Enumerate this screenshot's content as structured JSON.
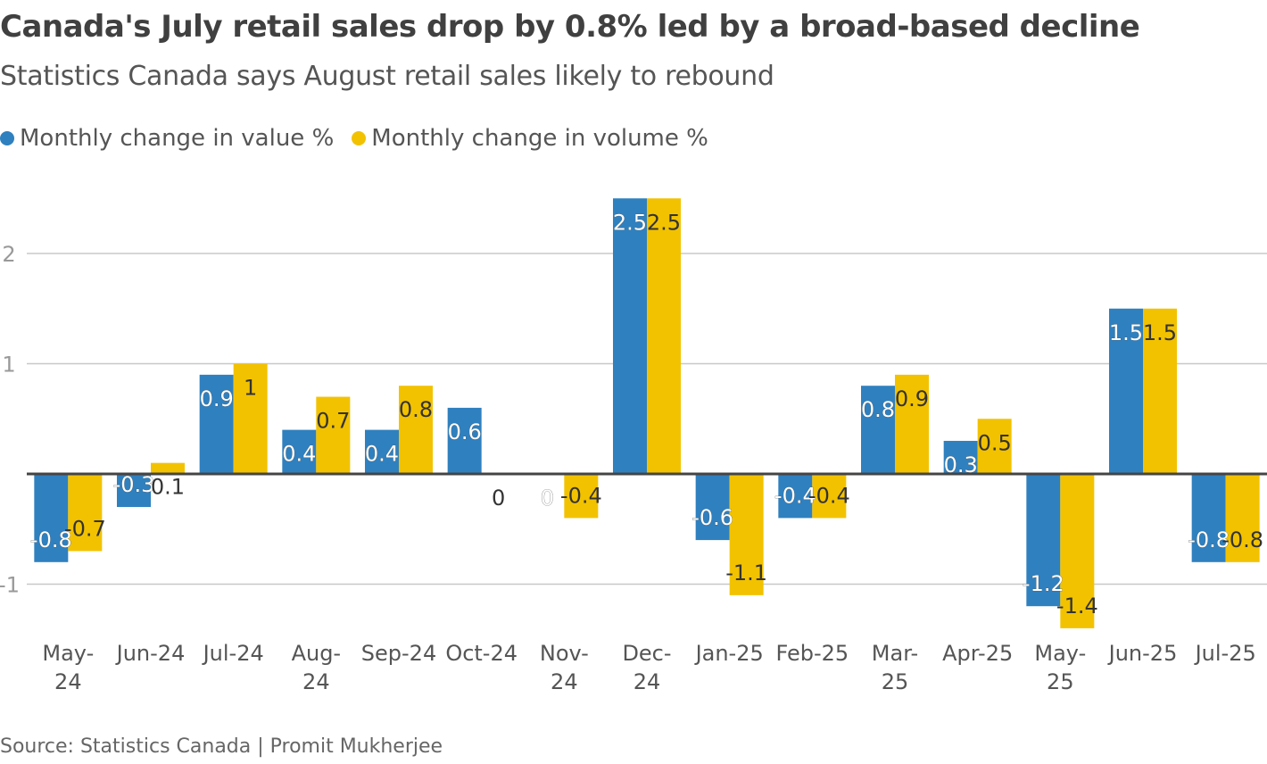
{
  "chart_data": {
    "type": "bar",
    "title": "Canada's July retail sales drop by 0.8% led by a broad-based decline",
    "subtitle": "Statistics Canada says August retail sales likely to rebound",
    "source": "Source: Statistics Canada | Promit Mukherjee",
    "categories": [
      "May-24",
      "Jun-24",
      "Jul-24",
      "Aug-24",
      "Sep-24",
      "Oct-24",
      "Nov-24",
      "Dec-24",
      "Jan-25",
      "Feb-25",
      "Mar-25",
      "Apr-25",
      "May-25",
      "Jun-25",
      "Jul-25"
    ],
    "series": [
      {
        "name": "Monthly change in value %",
        "color": "#2f80bf",
        "values": [
          -0.8,
          -0.3,
          0.9,
          0.4,
          0.4,
          0.6,
          0,
          2.5,
          -0.6,
          -0.4,
          0.8,
          0.3,
          -1.2,
          1.5,
          -0.8
        ]
      },
      {
        "name": "Monthly change in volume %",
        "color": "#f2c200",
        "values": [
          -0.7,
          0.1,
          1,
          0.7,
          0.8,
          0,
          -0.4,
          2.5,
          -1.1,
          -0.4,
          0.9,
          0.5,
          -1.4,
          1.5,
          -0.8
        ]
      }
    ],
    "yticks": [
      -1,
      1,
      2
    ],
    "ylim": [
      -1.4,
      2.5
    ],
    "grid": true,
    "legend": "top-left",
    "xlabel": "",
    "ylabel": ""
  }
}
